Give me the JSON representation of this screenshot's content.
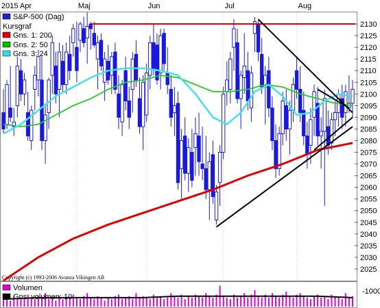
{
  "chart_data": {
    "type": "candlestick",
    "title": "S&P-500 (Dag)",
    "months": [
      {
        "label": "2015 Apr",
        "day": 0
      },
      {
        "label": "Maj",
        "day": 21
      },
      {
        "label": "Jun",
        "day": 41
      },
      {
        "label": "Jul",
        "day": 63
      },
      {
        "label": "Aug",
        "day": 84
      }
    ],
    "y_ticks": [
      2025,
      2030,
      2035,
      2040,
      2045,
      2050,
      2055,
      2060,
      2065,
      2070,
      2075,
      2080,
      2085,
      2090,
      2095,
      2100,
      2105,
      2110,
      2115,
      2120,
      2125,
      2130
    ],
    "ylim": [
      2020,
      2135
    ],
    "legend": [
      {
        "key": "title",
        "label": "S&P-500 (Dag)",
        "color": "#2020d0"
      },
      {
        "key": "ma200",
        "label": "Gns. 1: 200",
        "color": "#dd0000"
      },
      {
        "key": "ma50",
        "label": "Gns. 2: 50",
        "color": "#00bb00"
      },
      {
        "key": "ma24",
        "label": "Gns. 3: 24",
        "color": "#33dddd"
      },
      {
        "key": "kursgraf",
        "label": "Kursgraf",
        "color": ""
      }
    ],
    "colors": {
      "candle": "#1a1ad8",
      "ma200": "#dd0000",
      "ma50": "#22cc22",
      "ma24": "#44e0ee",
      "trend": "#000000",
      "resistance": "#dd0000",
      "volume": "#dd00dd"
    },
    "resistance": {
      "value": 2130,
      "from_day": 25,
      "to_day": 100
    },
    "trendlines": [
      {
        "x1": 73,
        "y1": 2132,
        "x2": 100,
        "y2": 2092
      },
      {
        "x1": 61,
        "y1": 2043,
        "x2": 100,
        "y2": 2086
      },
      {
        "x1": 89,
        "y1": 2076,
        "x2": 100,
        "y2": 2090
      },
      {
        "x1": 90,
        "y1": 2102,
        "x2": 99,
        "y2": 2094
      }
    ],
    "candles": [
      [
        2092,
        2102,
        2083,
        2085
      ],
      [
        2087,
        2106,
        2085,
        2104
      ],
      [
        2094,
        2112,
        2088,
        2090
      ],
      [
        2086,
        2094,
        2082,
        2088
      ],
      [
        2095,
        2116,
        2090,
        2112
      ],
      [
        2110,
        2115,
        2097,
        2100
      ],
      [
        2100,
        2109,
        2095,
        2106
      ],
      [
        2092,
        2101,
        2080,
        2082
      ],
      [
        2080,
        2095,
        2076,
        2093
      ],
      [
        2102,
        2112,
        2093,
        2108
      ],
      [
        2106,
        2119,
        2099,
        2116
      ],
      [
        2106,
        2116,
        2076,
        2080
      ],
      [
        2080,
        2096,
        2070,
        2091
      ],
      [
        2092,
        2107,
        2085,
        2106
      ],
      [
        2108,
        2125,
        2100,
        2122
      ],
      [
        2112,
        2118,
        2096,
        2100
      ],
      [
        2102,
        2122,
        2090,
        2118
      ],
      [
        2114,
        2121,
        2101,
        2104
      ],
      [
        2104,
        2122,
        2100,
        2118
      ],
      [
        2117,
        2125,
        2106,
        2110
      ],
      [
        2122,
        2130,
        2116,
        2128
      ],
      [
        2120,
        2131,
        2105,
        2110
      ],
      [
        2123,
        2131,
        2118,
        2130
      ],
      [
        2128,
        2133,
        2120,
        2122
      ],
      [
        2124,
        2135,
        2113,
        2129
      ],
      [
        2130,
        2131,
        2119,
        2128
      ],
      [
        2126,
        2131,
        2120,
        2121
      ],
      [
        2115,
        2125,
        2102,
        2122
      ],
      [
        2123,
        2126,
        2110,
        2112
      ],
      [
        2105,
        2118,
        2097,
        2115
      ],
      [
        2114,
        2121,
        2104,
        2106
      ],
      [
        2108,
        2118,
        2100,
        2116
      ],
      [
        2118,
        2122,
        2100,
        2102
      ],
      [
        2100,
        2108,
        2085,
        2090
      ],
      [
        2088,
        2106,
        2082,
        2104
      ],
      [
        2110,
        2116,
        2093,
        2097
      ],
      [
        2097,
        2103,
        2085,
        2090
      ],
      [
        2102,
        2118,
        2092,
        2115
      ],
      [
        2117,
        2123,
        2103,
        2106
      ],
      [
        2098,
        2107,
        2083,
        2086
      ],
      [
        2086,
        2108,
        2076,
        2105
      ],
      [
        2091,
        2113,
        2088,
        2109
      ],
      [
        2108,
        2125,
        2102,
        2122
      ],
      [
        2122,
        2130,
        2108,
        2111
      ],
      [
        2121,
        2126,
        2104,
        2106
      ],
      [
        2109,
        2128,
        2102,
        2125
      ],
      [
        2126,
        2128,
        2110,
        2113
      ],
      [
        2109,
        2120,
        2100,
        2104
      ],
      [
        2102,
        2108,
        2086,
        2090
      ],
      [
        2092,
        2103,
        2082,
        2095
      ],
      [
        2096,
        2101,
        2059,
        2062
      ],
      [
        2068,
        2085,
        2055,
        2080
      ],
      [
        2082,
        2090,
        2063,
        2066
      ],
      [
        2066,
        2081,
        2058,
        2077
      ],
      [
        2075,
        2085,
        2060,
        2063
      ],
      [
        2077,
        2090,
        2065,
        2083
      ],
      [
        2082,
        2092,
        2065,
        2071
      ],
      [
        2070,
        2086,
        2063,
        2068
      ],
      [
        2068,
        2082,
        2055,
        2059
      ],
      [
        2059,
        2075,
        2046,
        2071
      ],
      [
        2074,
        2080,
        2053,
        2056
      ],
      [
        2046,
        2061,
        2044,
        2058
      ],
      [
        2062,
        2078,
        2052,
        2075
      ],
      [
        2075,
        2103,
        2072,
        2100
      ],
      [
        2101,
        2114,
        2095,
        2106
      ],
      [
        2102,
        2118,
        2096,
        2115
      ],
      [
        2120,
        2132,
        2110,
        2128
      ],
      [
        2122,
        2128,
        2096,
        2098
      ],
      [
        2098,
        2110,
        2085,
        2108
      ],
      [
        2107,
        2126,
        2100,
        2112
      ],
      [
        2110,
        2118,
        2093,
        2097
      ],
      [
        2094,
        2112,
        2088,
        2109
      ],
      [
        2126,
        2133,
        2118,
        2131
      ],
      [
        2130,
        2132,
        2114,
        2118
      ],
      [
        2117,
        2124,
        2100,
        2103
      ],
      [
        2103,
        2112,
        2087,
        2108
      ],
      [
        2110,
        2116,
        2090,
        2094
      ],
      [
        2094,
        2099,
        2076,
        2080
      ],
      [
        2080,
        2087,
        2064,
        2068
      ],
      [
        2068,
        2086,
        2065,
        2083
      ],
      [
        2083,
        2101,
        2078,
        2097
      ],
      [
        2095,
        2102,
        2080,
        2085
      ],
      [
        2085,
        2097,
        2074,
        2093
      ],
      [
        2093,
        2107,
        2088,
        2104
      ],
      [
        2110,
        2116,
        2098,
        2102
      ],
      [
        2102,
        2112,
        2088,
        2092
      ],
      [
        2093,
        2101,
        2078,
        2082
      ],
      [
        2082,
        2088,
        2068,
        2074
      ],
      [
        2078,
        2094,
        2070,
        2089
      ],
      [
        2090,
        2104,
        2082,
        2101
      ],
      [
        2096,
        2103,
        2078,
        2082
      ],
      [
        2082,
        2090,
        2068,
        2084
      ],
      [
        2084,
        2102,
        2052,
        2098
      ],
      [
        2086,
        2093,
        2074,
        2078
      ],
      [
        2079,
        2092,
        2076,
        2089
      ],
      [
        2089,
        2097,
        2082,
        2092
      ],
      [
        2092,
        2102,
        2086,
        2100
      ],
      [
        2098,
        2104,
        2085,
        2090
      ],
      [
        2092,
        2104,
        2086,
        2101
      ],
      [
        2094,
        2108,
        2092,
        2096
      ],
      [
        2096,
        2106,
        2090,
        2102
      ]
    ],
    "ma200": [
      [
        0,
        2020
      ],
      [
        10,
        2030
      ],
      [
        20,
        2038
      ],
      [
        30,
        2044
      ],
      [
        40,
        2049
      ],
      [
        50,
        2054
      ],
      [
        60,
        2059
      ],
      [
        70,
        2065
      ],
      [
        80,
        2070
      ],
      [
        90,
        2076
      ],
      [
        100,
        2079
      ]
    ],
    "ma50": [
      [
        0,
        2087
      ],
      [
        5,
        2086
      ],
      [
        10,
        2087
      ],
      [
        15,
        2091
      ],
      [
        20,
        2095
      ],
      [
        25,
        2098
      ],
      [
        30,
        2102
      ],
      [
        35,
        2105
      ],
      [
        40,
        2106
      ],
      [
        45,
        2108
      ],
      [
        50,
        2107
      ],
      [
        55,
        2104
      ],
      [
        60,
        2101
      ],
      [
        65,
        2101
      ],
      [
        70,
        2102
      ],
      [
        75,
        2104
      ],
      [
        80,
        2103
      ],
      [
        85,
        2100
      ],
      [
        90,
        2098
      ],
      [
        95,
        2096
      ],
      [
        100,
        2095
      ]
    ],
    "ma24": [
      [
        0,
        2083
      ],
      [
        5,
        2087
      ],
      [
        10,
        2093
      ],
      [
        15,
        2099
      ],
      [
        20,
        2103
      ],
      [
        25,
        2107
      ],
      [
        30,
        2110
      ],
      [
        35,
        2111
      ],
      [
        40,
        2111
      ],
      [
        45,
        2110
      ],
      [
        50,
        2108
      ],
      [
        55,
        2100
      ],
      [
        60,
        2090
      ],
      [
        64,
        2087
      ],
      [
        68,
        2092
      ],
      [
        72,
        2101
      ],
      [
        76,
        2104
      ],
      [
        80,
        2099
      ],
      [
        84,
        2091
      ],
      [
        88,
        2092
      ],
      [
        92,
        2097
      ],
      [
        96,
        2100
      ],
      [
        100,
        2099
      ]
    ],
    "volume": {
      "label": "Volumen",
      "avg_label": "Gns. volumen: 10",
      "axis_label": "1000",
      "bars": [
        5,
        6,
        4,
        7,
        5,
        6,
        5,
        8,
        6,
        5,
        7,
        6,
        9,
        5,
        6,
        4,
        7,
        5,
        6,
        5,
        8,
        6,
        5,
        7,
        9,
        6,
        5,
        7,
        6,
        4,
        6,
        5,
        7,
        8,
        5,
        6,
        7,
        5,
        9,
        6,
        7,
        6,
        5,
        8,
        6,
        7,
        5,
        6,
        9,
        7,
        6,
        8,
        5,
        7,
        6,
        8,
        7,
        6,
        9,
        7,
        6,
        8,
        14,
        7,
        6,
        5,
        8,
        6,
        7,
        9,
        6,
        8,
        11,
        7,
        6,
        8,
        6,
        9,
        7,
        6,
        8,
        10,
        7,
        6,
        8,
        9,
        7,
        6,
        5,
        7,
        8,
        6,
        7,
        5,
        8,
        7,
        6,
        5,
        9,
        6,
        7
      ],
      "avg": [
        [
          0,
          5
        ],
        [
          10,
          6
        ],
        [
          20,
          6
        ],
        [
          30,
          6
        ],
        [
          40,
          6
        ],
        [
          50,
          7
        ],
        [
          60,
          7
        ],
        [
          70,
          7
        ],
        [
          80,
          7
        ],
        [
          90,
          7
        ],
        [
          100,
          6
        ]
      ]
    },
    "copyright": "Copyright (c) 1993-2006 Avanza Vikingen AB"
  }
}
